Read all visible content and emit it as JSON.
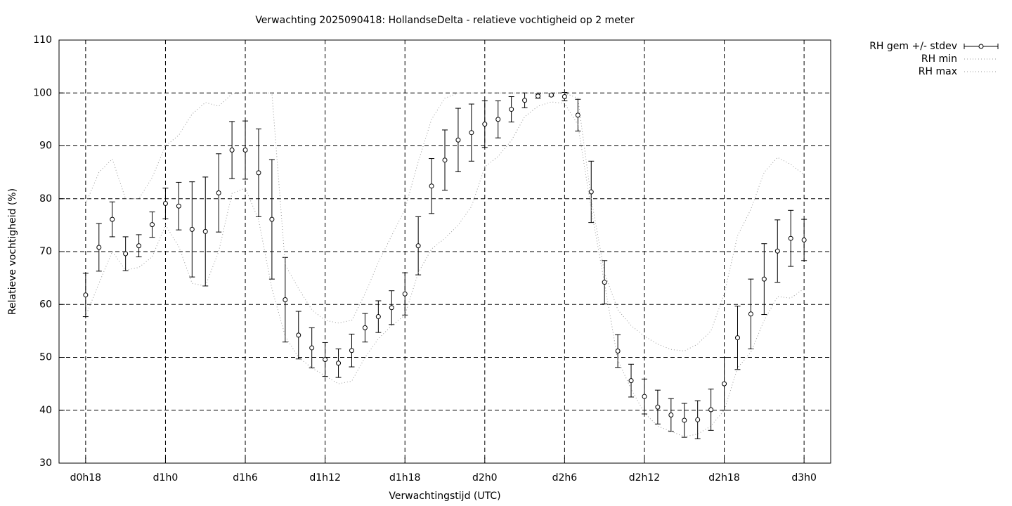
{
  "chart_data": {
    "type": "errorbar-line",
    "title": "Verwachting 2025090418: HollandseDelta - relatieve vochtigheid op 2 meter",
    "xlabel": "Verwachtingstijd (UTC)",
    "ylabel": "Relatieve vochtigheid (%)",
    "x": [
      18,
      19,
      20,
      21,
      22,
      23,
      24,
      25,
      26,
      27,
      28,
      29,
      30,
      31,
      32,
      33,
      34,
      35,
      36,
      37,
      38,
      39,
      40,
      41,
      42,
      43,
      44,
      45,
      46,
      47,
      48,
      49,
      50,
      51,
      52,
      53,
      54,
      55,
      56,
      57,
      58,
      59,
      60,
      61,
      62,
      63,
      64,
      65,
      66,
      67,
      68,
      69,
      70,
      71,
      72
    ],
    "series": [
      {
        "name": "RH gem +/- stdev",
        "color": "#000000",
        "values": [
          61.8,
          70.8,
          76.1,
          69.6,
          71.1,
          75.1,
          79.1,
          78.6,
          74.2,
          73.8,
          81.1,
          89.2,
          89.2,
          84.9,
          76.1,
          60.9,
          54.2,
          51.8,
          49.6,
          48.9,
          51.3,
          55.6,
          57.7,
          59.4,
          62,
          71.1,
          82.4,
          87.3,
          91.1,
          92.5,
          94.1,
          95,
          96.9,
          98.6,
          99.4,
          99.6,
          99.3,
          95.8,
          81.3,
          64.2,
          51.2,
          45.6,
          42.6,
          40.6,
          39.1,
          38.1,
          38.2,
          40.1,
          45,
          53.7,
          58.2,
          64.8,
          70.1,
          72.5,
          72.2
        ],
        "errors": [
          4.1,
          4.5,
          3.3,
          3.2,
          2.1,
          2.4,
          2.9,
          4.5,
          9,
          10.3,
          7.4,
          5.4,
          5.5,
          8.3,
          11.3,
          8,
          4.5,
          3.8,
          3.2,
          2.7,
          3.1,
          2.7,
          3,
          3.2,
          4,
          5.5,
          5.2,
          5.7,
          6,
          5.4,
          4.4,
          3.5,
          2.4,
          1.4,
          0.4,
          0.2,
          0.8,
          3,
          5.8,
          4.1,
          3.1,
          3.1,
          3.3,
          3.2,
          3.1,
          3.2,
          3.6,
          3.9,
          5,
          6,
          6.6,
          6.7,
          5.9,
          5.3,
          3.9
        ]
      },
      {
        "name": "RH min",
        "color": "#999999",
        "values": [
          57.8,
          64,
          70,
          66.5,
          67,
          69,
          75,
          71,
          64,
          63.5,
          70,
          81,
          82,
          76,
          63,
          54,
          50,
          48,
          46.5,
          45,
          45.5,
          50,
          53.5,
          56,
          58,
          66,
          70.5,
          72.5,
          75,
          78.5,
          86,
          88,
          91,
          95.5,
          97.5,
          98.3,
          98,
          94,
          78,
          64,
          49.5,
          44,
          39.5,
          37,
          36,
          35,
          35.5,
          37,
          40,
          48,
          51,
          57,
          61.5,
          61.2,
          63
        ]
      },
      {
        "name": "RH max",
        "color": "#999999",
        "values": [
          79,
          85,
          87.5,
          80,
          80,
          84,
          90,
          92,
          96,
          98.2,
          97.5,
          99.8,
          100,
          100,
          100,
          67.5,
          63,
          59,
          57,
          56.5,
          57,
          62,
          68,
          73,
          78,
          87,
          95,
          99,
          100,
          100,
          100,
          100,
          100,
          100,
          100,
          100,
          100,
          99,
          80,
          66,
          59,
          56,
          54,
          52.5,
          51.5,
          51.2,
          52.5,
          55,
          62,
          73,
          78,
          85,
          87.8,
          86.5,
          84.5
        ]
      }
    ],
    "xlim": [
      16,
      74
    ],
    "xticks": [
      {
        "value": 18,
        "label": "d0h18"
      },
      {
        "value": 24,
        "label": "d1h0"
      },
      {
        "value": 30,
        "label": "d1h6"
      },
      {
        "value": 36,
        "label": "d1h12"
      },
      {
        "value": 42,
        "label": "d1h18"
      },
      {
        "value": 48,
        "label": "d2h0"
      },
      {
        "value": 54,
        "label": "d2h6"
      },
      {
        "value": 60,
        "label": "d2h12"
      },
      {
        "value": 66,
        "label": "d2h18"
      },
      {
        "value": 72,
        "label": "d3h0"
      }
    ],
    "ylim": [
      30,
      110
    ],
    "yticks": [
      30,
      40,
      50,
      60,
      70,
      80,
      90,
      100,
      110
    ],
    "grid": true,
    "legend": "outside-top-right"
  }
}
